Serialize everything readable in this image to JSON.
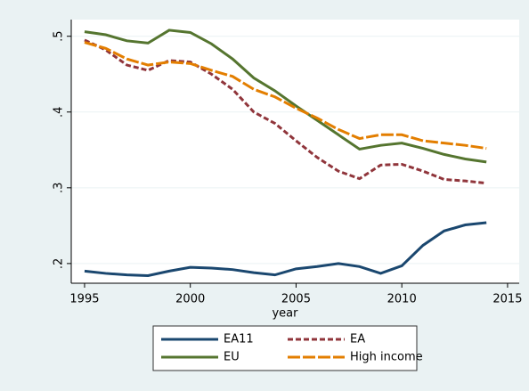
{
  "chart_data": {
    "type": "line",
    "x": [
      1995,
      1996,
      1997,
      1998,
      1999,
      2000,
      2001,
      2002,
      2003,
      2004,
      2005,
      2006,
      2007,
      2008,
      2009,
      2010,
      2011,
      2012,
      2013,
      2014
    ],
    "x_label": "year",
    "xlim": [
      1994.37,
      2015.55
    ],
    "xticks": [
      1995,
      2000,
      2005,
      2010,
      2015
    ],
    "ylim": [
      0.174,
      0.522
    ],
    "yticks": [
      {
        "value": 0.2,
        "label": ".2"
      },
      {
        "value": 0.3,
        "label": ".3"
      },
      {
        "value": 0.4,
        "label": ".4"
      },
      {
        "value": 0.5,
        "label": ".5"
      }
    ],
    "grid": true,
    "legend": "bottom",
    "series": [
      {
        "name": "EA11",
        "color": "#1a476f",
        "dash": "none",
        "values": [
          0.19,
          0.187,
          0.185,
          0.184,
          0.19,
          0.195,
          0.194,
          0.192,
          0.188,
          0.185,
          0.193,
          0.196,
          0.2,
          0.196,
          0.187,
          0.197,
          0.224,
          0.243,
          0.251,
          0.254
        ]
      },
      {
        "name": "EA",
        "color": "#90353b",
        "dash": "6 3",
        "values": [
          0.495,
          0.482,
          0.462,
          0.455,
          0.468,
          0.466,
          0.45,
          0.43,
          0.4,
          0.385,
          0.362,
          0.34,
          0.322,
          0.312,
          0.33,
          0.331,
          0.322,
          0.311,
          0.309,
          0.306
        ]
      },
      {
        "name": "EU",
        "color": "#55752f",
        "dash": "none",
        "values": [
          0.506,
          0.502,
          0.494,
          0.491,
          0.508,
          0.505,
          0.49,
          0.47,
          0.445,
          0.428,
          0.408,
          0.389,
          0.37,
          0.351,
          0.356,
          0.359,
          0.352,
          0.344,
          0.338,
          0.334
        ]
      },
      {
        "name": "High income",
        "color": "#e37e00",
        "dash": "14 3",
        "values": [
          0.492,
          0.484,
          0.47,
          0.462,
          0.466,
          0.464,
          0.455,
          0.447,
          0.43,
          0.42,
          0.405,
          0.392,
          0.377,
          0.365,
          0.37,
          0.37,
          0.362,
          0.359,
          0.356,
          0.352
        ]
      }
    ]
  }
}
